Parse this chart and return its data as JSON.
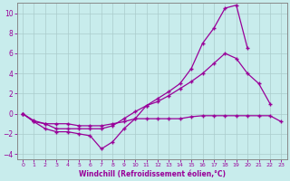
{
  "xlabel": "Windchill (Refroidissement éolien,°C)",
  "background_color": "#c8ecec",
  "grid_color": "#aacccc",
  "line_color": "#990099",
  "x_hours": [
    0,
    1,
    2,
    3,
    4,
    5,
    6,
    7,
    8,
    9,
    10,
    11,
    12,
    13,
    14,
    15,
    16,
    17,
    18,
    19,
    20,
    21,
    22,
    23
  ],
  "line1": [
    0,
    -0.8,
    -1.5,
    -1.8,
    -1.8,
    -2.0,
    -2.2,
    -3.5,
    -2.8,
    -1.5,
    -0.5,
    0.8,
    1.5,
    2.2,
    3.0,
    4.5,
    7.0,
    8.5,
    10.5,
    10.8,
    6.5,
    null,
    null,
    null
  ],
  "line2": [
    0,
    -0.7,
    -1.0,
    -1.5,
    -1.5,
    -1.5,
    -1.5,
    -1.5,
    -1.2,
    -0.5,
    0.2,
    0.8,
    1.2,
    1.8,
    2.5,
    3.2,
    4.0,
    5.0,
    6.0,
    5.5,
    4.0,
    3.0,
    1.0,
    null
  ],
  "line3": [
    0,
    -0.8,
    -1.0,
    -1.0,
    -1.0,
    -1.2,
    -1.2,
    -1.2,
    -1.0,
    -0.8,
    -0.5,
    -0.5,
    -0.5,
    -0.5,
    -0.5,
    -0.3,
    -0.2,
    -0.2,
    -0.2,
    -0.2,
    -0.2,
    -0.2,
    -0.2,
    -0.8
  ],
  "ylim": [
    -4.5,
    11.0
  ],
  "xlim": [
    -0.5,
    23.5
  ],
  "yticks": [
    -4,
    -2,
    0,
    2,
    4,
    6,
    8,
    10
  ],
  "xticks": [
    0,
    1,
    2,
    3,
    4,
    5,
    6,
    7,
    8,
    9,
    10,
    11,
    12,
    13,
    14,
    15,
    16,
    17,
    18,
    19,
    20,
    21,
    22,
    23
  ]
}
